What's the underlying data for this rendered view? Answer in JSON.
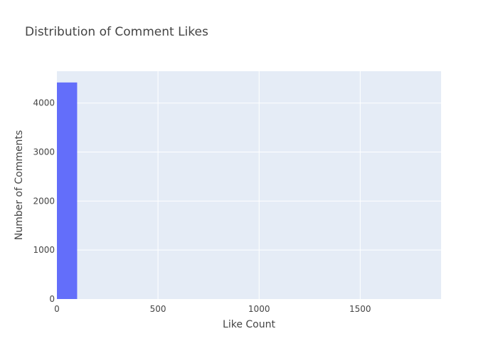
{
  "chart_data": {
    "type": "bar",
    "title": "Distribution of Comment Likes",
    "xlabel": "Like Count",
    "ylabel": "Number of Comments",
    "xlim": [
      0,
      1900
    ],
    "ylim": [
      0,
      4650
    ],
    "x_ticks": [
      "0",
      "500",
      "1000",
      "1500"
    ],
    "y_ticks": [
      "0",
      "1000",
      "2000",
      "3000",
      "4000"
    ],
    "grid": true,
    "bar_color": "#636efa",
    "plot_background": "#e5ecf6",
    "bins": [
      {
        "x0": 0,
        "x1": 100,
        "count": 4420
      }
    ]
  }
}
